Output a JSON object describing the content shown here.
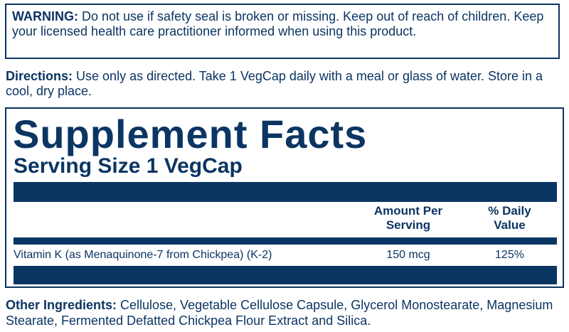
{
  "warning": {
    "label": "WARNING:",
    "text": " Do not use if safety seal is broken or missing. Keep out of reach of children. Keep your licensed health care practitioner informed when using this product."
  },
  "directions": {
    "label": "Directions:",
    "text": " Use only as directed. Take 1 VegCap daily with a meal or glass of water. Store in a cool, dry place."
  },
  "facts": {
    "title": "Supplement Facts",
    "serving_size": "Serving Size 1 VegCap",
    "columns": {
      "amount": "Amount Per Serving",
      "dv": "% Daily Value"
    },
    "rows": [
      {
        "name": "Vitamin K (as Menaquinone-7 from Chickpea) (K-2)",
        "amount": "150 mcg",
        "dv": "125%"
      }
    ]
  },
  "other": {
    "label": "Other Ingredients:",
    "text": " Cellulose, Vegetable Cellulose Capsule, Glycerol Monostearate, Magnesium Stearate, Fermented Defatted Chickpea Flour Extract and Silica."
  },
  "colors": {
    "brand": "#0b3562"
  }
}
